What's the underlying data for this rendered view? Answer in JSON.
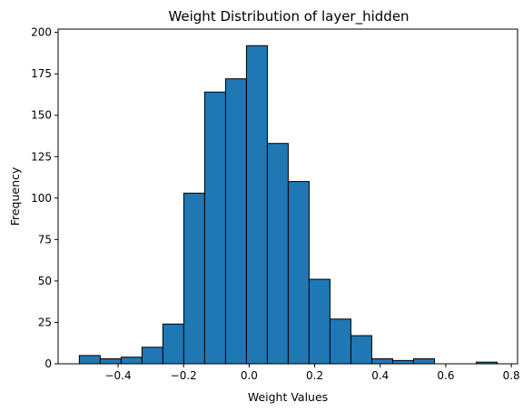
{
  "chart_data": {
    "type": "bar",
    "title": "Weight Distribution of layer_hidden",
    "xlabel": "Weight Values",
    "ylabel": "Frequency",
    "xlim": [
      -0.583,
      0.819
    ],
    "ylim": [
      0,
      202
    ],
    "xticks": [
      -0.4,
      -0.2,
      0.0,
      0.2,
      0.4,
      0.6,
      0.8
    ],
    "xtick_labels": [
      "−0.4",
      "−0.2",
      "0.0",
      "0.2",
      "0.4",
      "0.6",
      "0.8"
    ],
    "yticks": [
      0,
      25,
      50,
      75,
      100,
      125,
      150,
      175,
      200
    ],
    "ytick_labels": [
      "0",
      "25",
      "50",
      "75",
      "100",
      "125",
      "150",
      "175",
      "200"
    ],
    "bin_edges": [
      -0.5183,
      -0.4545,
      -0.3908,
      -0.327,
      -0.2633,
      -0.1995,
      -0.1358,
      -0.072,
      -0.0083,
      0.0555,
      0.1192,
      0.183,
      0.2467,
      0.3105,
      0.3742,
      0.438,
      0.5017,
      0.5655,
      0.6292,
      0.693,
      0.7567
    ],
    "values": [
      5,
      3,
      4,
      10,
      24,
      103,
      164,
      172,
      192,
      133,
      110,
      51,
      27,
      17,
      3,
      2,
      3,
      0,
      0,
      1
    ],
    "bar_color": "#1f77b4",
    "edge_color": "#000000",
    "grid": false,
    "legend": false
  }
}
